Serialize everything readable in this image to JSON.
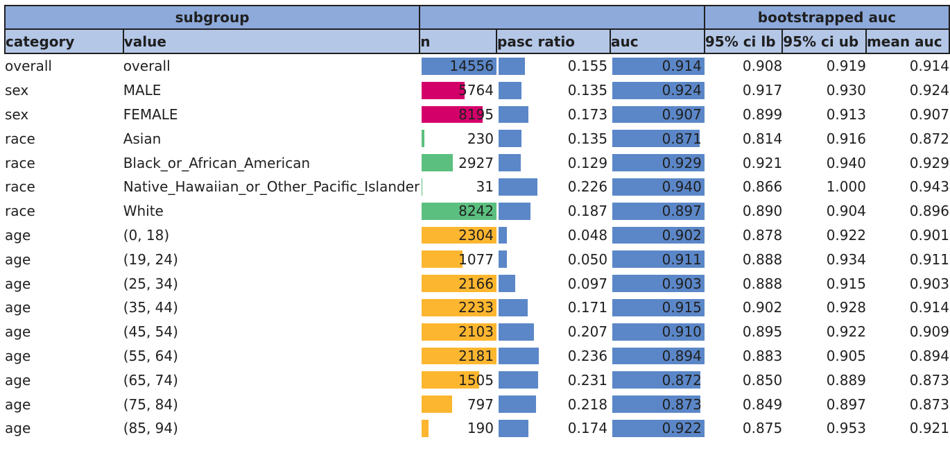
{
  "table": {
    "group_headers": {
      "subgroup": "subgroup",
      "middle": "",
      "bootstrapped": "bootstrapped auc"
    },
    "columns": [
      "category",
      "value",
      "n",
      "pasc ratio",
      "auc",
      "95% ci lb",
      "95% ci ub",
      "mean auc"
    ],
    "colors": {
      "header_group_bg": "#8eaadb",
      "header_col_bg": "#b4c7e7",
      "blue_bar": "#5b87c8",
      "sex_bar": "#d4006a",
      "race_bar": "#5bbf7f",
      "age_bar": "#fdb62f"
    },
    "rows": [
      {
        "category": "overall",
        "value": "overall",
        "n": "14556",
        "pasc_ratio": "0.155",
        "auc": "0.914",
        "ci_lb": "0.908",
        "ci_ub": "0.919",
        "mean_auc": "0.914",
        "n_frac": 1.0,
        "n_color": "#5b87c8"
      },
      {
        "category": "sex",
        "value": "MALE",
        "n": "5764",
        "pasc_ratio": "0.135",
        "auc": "0.924",
        "ci_lb": "0.917",
        "ci_ub": "0.930",
        "mean_auc": "0.924",
        "n_frac": 0.4895,
        "n_color": "#d4006a"
      },
      {
        "category": "sex",
        "value": "FEMALE",
        "n": "8195",
        "pasc_ratio": "0.173",
        "auc": "0.907",
        "ci_lb": "0.899",
        "ci_ub": "0.913",
        "mean_auc": "0.907",
        "n_frac": 0.696,
        "n_color": "#d4006a"
      },
      {
        "category": "race",
        "value": "Asian",
        "n": "230",
        "pasc_ratio": "0.135",
        "auc": "0.871",
        "ci_lb": "0.814",
        "ci_ub": "0.916",
        "mean_auc": "0.872",
        "n_frac": 0.0279,
        "n_color": "#5bbf7f"
      },
      {
        "category": "race",
        "value": "Black_or_African_American",
        "n": "2927",
        "pasc_ratio": "0.129",
        "auc": "0.929",
        "ci_lb": "0.921",
        "ci_ub": "0.940",
        "mean_auc": "0.929",
        "n_frac": 0.3551,
        "n_color": "#5bbf7f"
      },
      {
        "category": "race",
        "value": "Native_Hawaiian_or_Other_Pacific_Islander",
        "n": "31",
        "pasc_ratio": "0.226",
        "auc": "0.940",
        "ci_lb": "0.866",
        "ci_ub": "1.000",
        "mean_auc": "0.943",
        "n_frac": 0.0038,
        "n_color": "#5bbf7f"
      },
      {
        "category": "race",
        "value": "White",
        "n": "8242",
        "pasc_ratio": "0.187",
        "auc": "0.897",
        "ci_lb": "0.890",
        "ci_ub": "0.904",
        "mean_auc": "0.896",
        "n_frac": 1.0,
        "n_color": "#5bbf7f"
      },
      {
        "category": "age",
        "value": "(0, 18)",
        "n": "2304",
        "pasc_ratio": "0.048",
        "auc": "0.902",
        "ci_lb": "0.878",
        "ci_ub": "0.922",
        "mean_auc": "0.901",
        "n_frac": 1.0,
        "n_color": "#fdb62f"
      },
      {
        "category": "age",
        "value": "(19, 24)",
        "n": "1077",
        "pasc_ratio": "0.050",
        "auc": "0.911",
        "ci_lb": "0.888",
        "ci_ub": "0.934",
        "mean_auc": "0.911",
        "n_frac": 0.4674,
        "n_color": "#fdb62f"
      },
      {
        "category": "age",
        "value": "(25, 34)",
        "n": "2166",
        "pasc_ratio": "0.097",
        "auc": "0.903",
        "ci_lb": "0.888",
        "ci_ub": "0.915",
        "mean_auc": "0.903",
        "n_frac": 0.9401,
        "n_color": "#fdb62f"
      },
      {
        "category": "age",
        "value": "(35, 44)",
        "n": "2233",
        "pasc_ratio": "0.171",
        "auc": "0.915",
        "ci_lb": "0.902",
        "ci_ub": "0.928",
        "mean_auc": "0.914",
        "n_frac": 0.9692,
        "n_color": "#fdb62f"
      },
      {
        "category": "age",
        "value": "(45, 54)",
        "n": "2103",
        "pasc_ratio": "0.207",
        "auc": "0.910",
        "ci_lb": "0.895",
        "ci_ub": "0.922",
        "mean_auc": "0.909",
        "n_frac": 0.9128,
        "n_color": "#fdb62f"
      },
      {
        "category": "age",
        "value": "(55, 64)",
        "n": "2181",
        "pasc_ratio": "0.236",
        "auc": "0.894",
        "ci_lb": "0.883",
        "ci_ub": "0.905",
        "mean_auc": "0.894",
        "n_frac": 0.9466,
        "n_color": "#fdb62f"
      },
      {
        "category": "age",
        "value": "(65, 74)",
        "n": "1505",
        "pasc_ratio": "0.231",
        "auc": "0.872",
        "ci_lb": "0.850",
        "ci_ub": "0.889",
        "mean_auc": "0.873",
        "n_frac": 0.6532,
        "n_color": "#fdb62f"
      },
      {
        "category": "age",
        "value": "(75, 84)",
        "n": "797",
        "pasc_ratio": "0.218",
        "auc": "0.873",
        "ci_lb": "0.849",
        "ci_ub": "0.897",
        "mean_auc": "0.873",
        "n_frac": 0.3459,
        "n_color": "#fdb62f"
      },
      {
        "category": "age",
        "value": "(85, 94)",
        "n": "190",
        "pasc_ratio": "0.174",
        "auc": "0.922",
        "ci_lb": "0.875",
        "ci_ub": "0.953",
        "mean_auc": "0.921",
        "n_frac": 0.0825,
        "n_color": "#fdb62f"
      }
    ]
  }
}
